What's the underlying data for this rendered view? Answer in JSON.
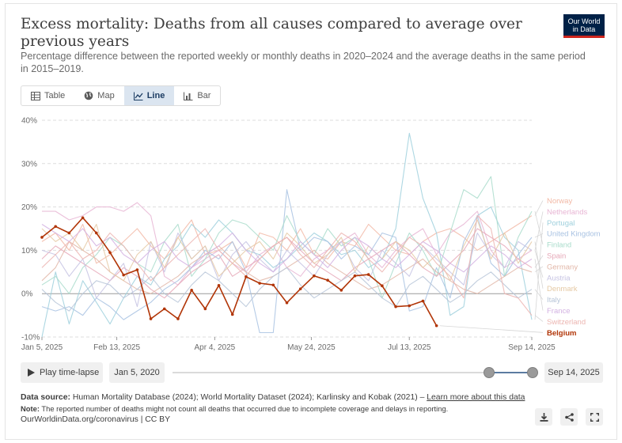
{
  "header": {
    "title": "Excess mortality: Deaths from all causes compared to average over previous years",
    "subtitle": "Percentage difference between the reported weekly or monthly deaths in 2020–2024 and the average deaths in the same period in 2015–2019.",
    "logo_line1": "Our World",
    "logo_line2": "in Data"
  },
  "tabs": [
    {
      "label": "Table",
      "icon": "table-icon"
    },
    {
      "label": "Map",
      "icon": "globe-icon"
    },
    {
      "label": "Line",
      "icon": "line-chart-icon",
      "active": true
    },
    {
      "label": "Bar",
      "icon": "bar-chart-icon"
    }
  ],
  "colors": {
    "Norway": "#f2b9a6",
    "Netherlands": "#e8b5d4",
    "Portugal": "#9fd0dd",
    "United Kingdom": "#a8c2e2",
    "Finland": "#a9dccb",
    "Spain": "#e6a8b8",
    "Germany": "#e2b7a8",
    "Austria": "#c6c3e3",
    "Denmark": "#e5c9a4",
    "Italy": "#b7c5d8",
    "France": "#d3b2e2",
    "Switzerland": "#ecb5b1",
    "Belgium": "#b13507"
  },
  "chart_data": {
    "type": "line",
    "x_tick_labels": [
      "Jan 5, 2025",
      "Feb 13, 2025",
      "Apr 4, 2025",
      "May 24, 2025",
      "Jul 13, 2025",
      "Sep 14, 2025"
    ],
    "x_tick_weeks": [
      0,
      5.5,
      12.7,
      19.8,
      27,
      36
    ],
    "y_ticks": [
      -10,
      0,
      10,
      20,
      30,
      40
    ],
    "y_tick_labels": [
      "-10%",
      "0%",
      "10%",
      "20%",
      "30%",
      "40%"
    ],
    "ylim": [
      -10,
      40
    ],
    "xlim": [
      0,
      36
    ],
    "grid": true,
    "legend_placement": "right",
    "series": [
      {
        "name": "Norway",
        "values": [
          12,
          14,
          10,
          16,
          7,
          9,
          12,
          15,
          11,
          8,
          13,
          17,
          9,
          10,
          12,
          6,
          14,
          13,
          10,
          15,
          9,
          8,
          12,
          11,
          16,
          13,
          10,
          9,
          12,
          14,
          15,
          13,
          10,
          12,
          14,
          16,
          18
        ]
      },
      {
        "name": "Netherlands",
        "values": [
          19,
          19,
          17,
          18,
          20,
          20,
          19,
          21,
          18,
          4,
          2,
          6,
          8,
          10,
          7,
          5,
          9,
          11,
          6,
          4,
          8,
          10,
          12,
          14,
          9,
          6,
          10,
          13,
          15,
          9,
          14,
          16,
          19,
          10,
          6,
          8,
          10
        ]
      },
      {
        "name": "Portugal",
        "values": [
          -10,
          5,
          -7,
          3,
          -2,
          -7,
          -1,
          4,
          2,
          8,
          11,
          16,
          13,
          17,
          14,
          10,
          9,
          6,
          8,
          11,
          14,
          12,
          9,
          10,
          6,
          8,
          15,
          37,
          22,
          14,
          -5,
          -3,
          18,
          20,
          13,
          10,
          -6
        ]
      },
      {
        "name": "United Kingdom",
        "values": [
          -3,
          -4,
          -3,
          -5,
          -1,
          -3,
          -6,
          -4,
          -2,
          1,
          3,
          6,
          10,
          8,
          12,
          5,
          -9,
          -9,
          24,
          10,
          13,
          12,
          8,
          11,
          9,
          14,
          13,
          -4,
          -3,
          6,
          -1,
          12,
          18,
          7,
          4,
          9,
          13
        ]
      },
      {
        "name": "Finland",
        "values": [
          2,
          4,
          0,
          6,
          9,
          13,
          11,
          7,
          5,
          12,
          16,
          4,
          8,
          14,
          17,
          16,
          13,
          10,
          18,
          12,
          9,
          15,
          11,
          13,
          8,
          -1,
          7,
          14,
          10,
          4,
          14,
          24,
          22,
          27,
          4,
          13,
          19
        ]
      },
      {
        "name": "Spain",
        "values": [
          8,
          11,
          9,
          7,
          5,
          3,
          6,
          4,
          1,
          -1,
          2,
          5,
          7,
          9,
          4,
          6,
          8,
          11,
          13,
          10,
          7,
          5,
          3,
          6,
          8,
          10,
          12,
          9,
          6,
          4,
          7,
          10,
          15,
          13,
          11,
          8,
          6
        ]
      },
      {
        "name": "Germany",
        "values": [
          3,
          6,
          12,
          10,
          8,
          5,
          3,
          1,
          0,
          2,
          4,
          7,
          9,
          11,
          8,
          5,
          3,
          4,
          6,
          8,
          10,
          7,
          5,
          3,
          1,
          2,
          4,
          6,
          8,
          5,
          3,
          1,
          0,
          2,
          4,
          6,
          5
        ]
      },
      {
        "name": "Austria",
        "values": [
          10,
          9,
          4,
          8,
          -1,
          3,
          7,
          -3,
          12,
          5,
          14,
          8,
          11,
          3,
          9,
          12,
          8,
          5,
          10,
          7,
          4,
          9,
          12,
          6,
          3,
          10,
          7,
          4,
          11,
          8,
          5,
          2,
          14,
          9,
          6,
          12,
          10
        ]
      },
      {
        "name": "Denmark",
        "values": [
          15,
          12,
          14,
          10,
          16,
          5,
          3,
          9,
          12,
          6,
          13,
          8,
          11,
          4,
          7,
          10,
          12,
          8,
          14,
          11,
          7,
          9,
          13,
          5,
          11,
          8,
          12,
          10,
          6,
          9,
          3,
          11,
          17,
          8,
          14,
          7,
          12
        ]
      },
      {
        "name": "Italy",
        "values": [
          1,
          -2,
          -4,
          0,
          3,
          2,
          -1,
          1,
          4,
          0,
          -2,
          2,
          5,
          3,
          0,
          -3,
          1,
          4,
          6,
          2,
          -1,
          1,
          3,
          5,
          2,
          -1,
          -3,
          2,
          4,
          1,
          -2,
          0,
          3,
          5,
          2,
          -1,
          1
        ]
      },
      {
        "name": "France",
        "values": [
          16,
          14,
          12,
          15,
          11,
          13,
          9,
          7,
          10,
          12,
          8,
          6,
          9,
          11,
          14,
          10,
          7,
          5,
          8,
          12,
          9,
          6,
          10,
          13,
          11,
          8,
          6,
          9,
          12,
          10,
          7,
          5,
          8,
          11,
          9,
          6,
          8
        ]
      },
      {
        "name": "Switzerland",
        "values": [
          6,
          9,
          12,
          8,
          10,
          14,
          11,
          7,
          3,
          6,
          9,
          12,
          15,
          10,
          7,
          4,
          8,
          11,
          13,
          9,
          6,
          10,
          14,
          12,
          8,
          5,
          9,
          13,
          11,
          7,
          4,
          -1,
          18,
          15,
          0,
          -1,
          -5
        ]
      },
      {
        "name": "Belgium",
        "values": [
          13,
          15.5,
          14,
          17.5,
          14,
          9.5,
          4.3,
          5.5,
          -5.8,
          -3.5,
          -5.8,
          0.8,
          -3.5,
          1.9,
          -4.8,
          3.9,
          2.4,
          2.0,
          -2.1,
          1.1,
          4.1,
          3.1,
          0.8,
          4.1,
          4.4,
          1.8,
          -3.0,
          -2.8,
          -1.7,
          -7.4
        ]
      }
    ]
  },
  "controls": {
    "play_label": "Play time-lapse",
    "start_date": "Jan 5, 2020",
    "end_date": "Sep 14, 2025"
  },
  "footer": {
    "source_prefix": "Data source:",
    "source_text": "Human Mortality Database (2024); World Mortality Dataset (2024); Karlinsky and Kobak (2021) –",
    "learn_more": "Learn more about this data",
    "note_prefix": "Note:",
    "note_text": "The reported number of deaths might not count all deaths that occurred due to incomplete coverage and delays in reporting.",
    "attribution": "OurWorldinData.org/coronavirus | CC BY"
  }
}
